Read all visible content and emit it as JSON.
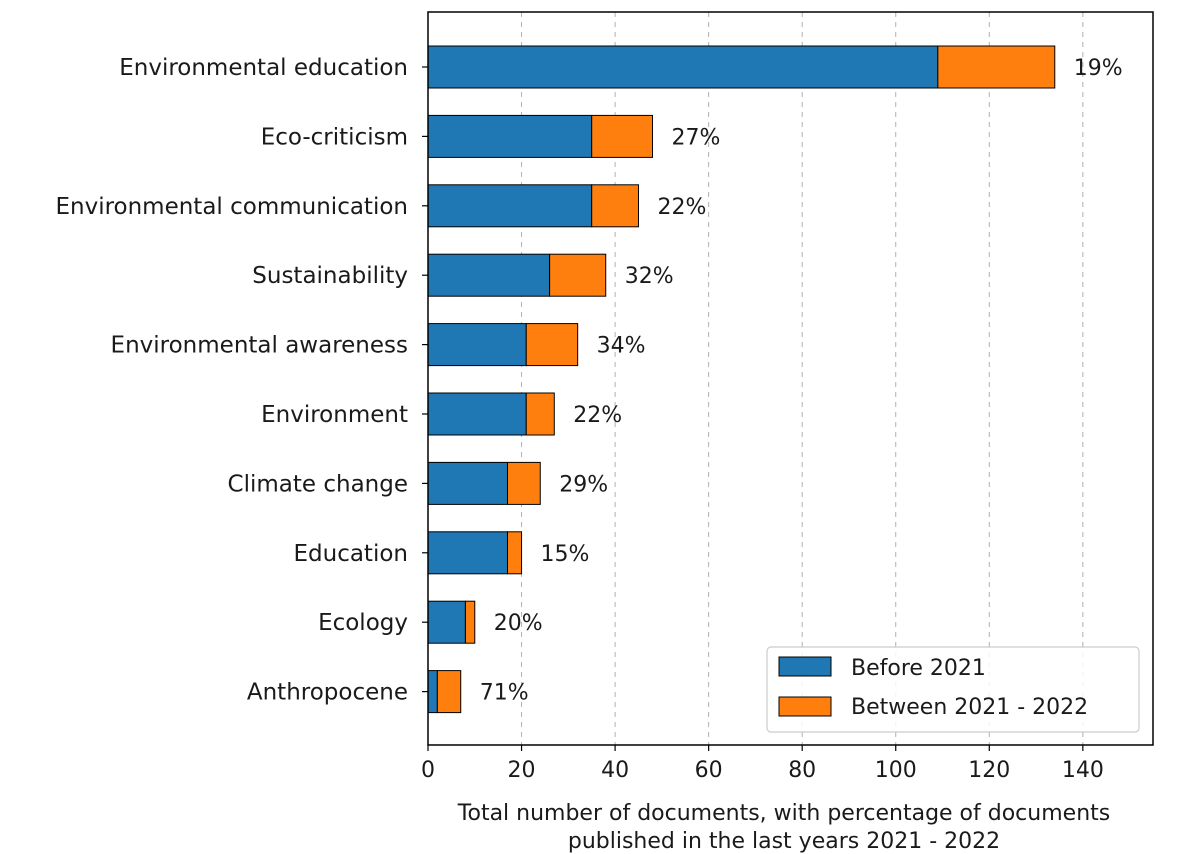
{
  "chart_data": {
    "type": "bar",
    "orientation": "horizontal",
    "stacked": true,
    "categories": [
      "Environmental education",
      "Eco-criticism",
      "Environmental communication",
      "Sustainability",
      "Environmental awareness",
      "Environment",
      "Climate change",
      "Education",
      "Ecology",
      "Anthropocene"
    ],
    "series": [
      {
        "name": "Before 2021",
        "color": "#1f77b4",
        "values": [
          109,
          35,
          35,
          26,
          21,
          21,
          17,
          17,
          8,
          2
        ]
      },
      {
        "name": "Between 2021 - 2022",
        "color": "#ff7f0e",
        "values": [
          25,
          13,
          10,
          12,
          11,
          6,
          7,
          3,
          2,
          5
        ]
      }
    ],
    "percent_labels": [
      "19%",
      "27%",
      "22%",
      "32%",
      "34%",
      "22%",
      "29%",
      "15%",
      "20%",
      "71%"
    ],
    "xlabel": [
      "Total number of documents, with percentage of documents",
      "published in the last years 2021 - 2022"
    ],
    "ylabel": "",
    "title": "",
    "xlim": [
      0,
      155
    ],
    "xticks": [
      0,
      20,
      40,
      60,
      80,
      100,
      120,
      140
    ],
    "grid": "x-dashed",
    "legend_position": "lower-right"
  }
}
